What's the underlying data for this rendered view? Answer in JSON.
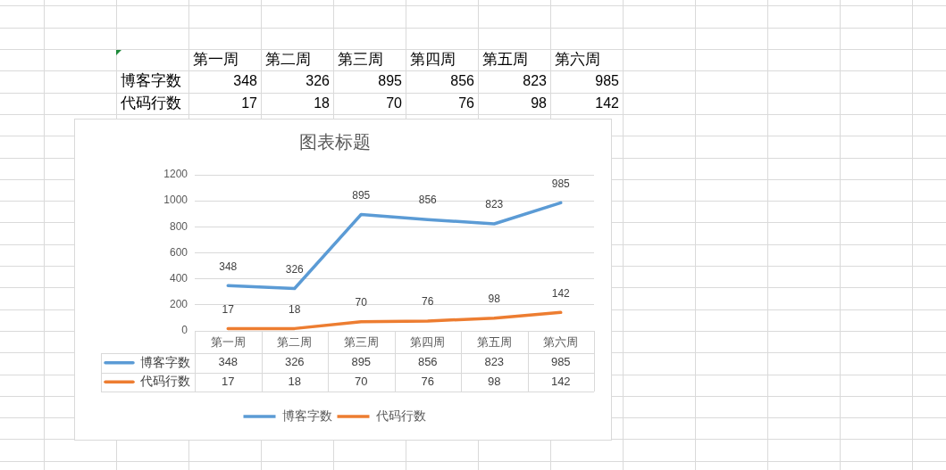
{
  "chart_data": [
    {
      "type": "other",
      "categories": [
        "第一周",
        "第二周",
        "第三周",
        "第四周",
        "第五周",
        "第六周"
      ],
      "series": [
        {
          "name": "博客字数",
          "values": [
            348,
            326,
            895,
            856,
            823,
            985
          ]
        },
        {
          "name": "代码行数",
          "values": [
            17,
            18,
            70,
            76,
            98,
            142
          ]
        }
      ],
      "data_labels": true
    },
    {
      "type": "line",
      "title": "图表标题",
      "categories": [
        "第一周",
        "第二周",
        "第三周",
        "第四周",
        "第五周",
        "第六周"
      ],
      "series": [
        {
          "name": "博客字数",
          "color": "#5b9bd5",
          "values": [
            348,
            326,
            895,
            856,
            823,
            985
          ]
        },
        {
          "name": "代码行数",
          "color": "#ed7d31",
          "values": [
            17,
            18,
            70,
            76,
            98,
            142
          ]
        }
      ],
      "ylim": [
        0,
        1200
      ],
      "yticks": [
        0,
        200,
        400,
        600,
        800,
        1000,
        1200
      ],
      "grid": "y",
      "legend": "bottom",
      "data_labels": true,
      "marker": "none",
      "annotations": [
        {
          "text": "348",
          "x": "第一周",
          "y": 348
        },
        {
          "text": "326",
          "x": "第二周",
          "y": 326
        },
        {
          "text": "895",
          "x": "第三周",
          "y": 895
        },
        {
          "text": "856",
          "x": "第四周",
          "y": 856
        },
        {
          "text": "823",
          "x": "第五周",
          "y": 823
        },
        {
          "text": "985",
          "x": "第六周",
          "y": 985
        },
        {
          "text": "17",
          "x": "第一周",
          "y": 17
        },
        {
          "text": "18",
          "x": "第二周",
          "y": 18
        },
        {
          "text": "70",
          "x": "第三周",
          "y": 70
        },
        {
          "text": "76",
          "x": "第四周",
          "y": 76
        },
        {
          "text": "98",
          "x": "第五周",
          "y": 98
        },
        {
          "text": "142",
          "x": "第六周",
          "y": 142
        }
      ]
    }
  ]
}
